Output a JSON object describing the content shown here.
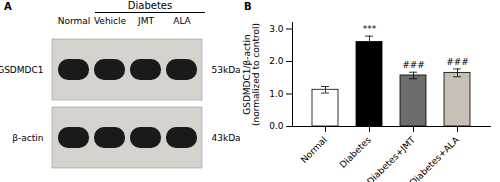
{
  "chart_data": [
    {
      "type": "blot",
      "panel": "A",
      "title": "Diabetes",
      "categories": [
        "Normal",
        "Vehicle",
        "JMT",
        "ALA"
      ],
      "rows": [
        "GSDMDC1",
        "β-actin"
      ],
      "row_labels": [
        "53kDa",
        "43kDa"
      ],
      "color": "#1a1a1a"
    },
    {
      "type": "bar",
      "panel": "B",
      "categories": [
        "Normal",
        "Diabetes",
        "Diabetes+JMT",
        "Diabetes+ALA"
      ],
      "values": [
        1.13,
        2.6,
        1.57,
        1.65
      ],
      "errors": [
        0.1,
        0.18,
        0.1,
        0.12
      ],
      "colors": [
        "white",
        "black",
        "#6d6d6d",
        "#c8bfb5"
      ],
      "edge_colors": [
        "black",
        "black",
        "black",
        "black"
      ],
      "ylabel": "GSDMDC1/β-actin\n(normalized to control)",
      "ylim": [
        0,
        3.2
      ],
      "yticks": [
        0,
        1,
        2,
        3
      ],
      "significance_labels": [
        null,
        "***",
        "###",
        "###"
      ]
    }
  ]
}
